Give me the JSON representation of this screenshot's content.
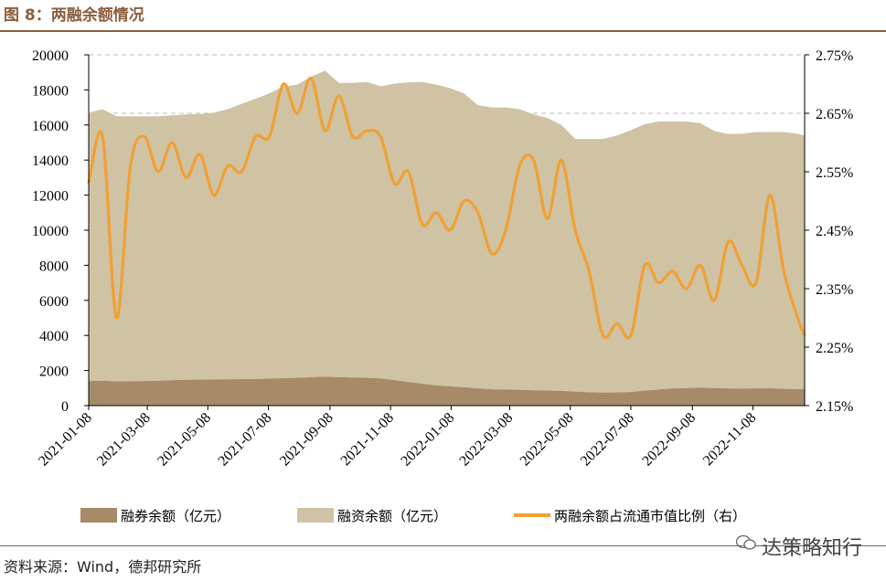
{
  "figure_title": "图 8：两融余额情况",
  "source_text": "资料来源：Wind，德邦研究所",
  "watermark_text": "达策略知行",
  "colors": {
    "margin_short": "#a78a68",
    "margin_financing": "#cfc3a4",
    "ratio_line": "#f0a035",
    "rule": "#8b5e3c",
    "grid": "#bdbdbd"
  },
  "chart_data": {
    "type": "area",
    "title": "",
    "grid": "dashed horizontal",
    "legend_position": "bottom",
    "x_tick_labels": [
      "2021-01-08",
      "2021-03-08",
      "2021-05-08",
      "2021-07-08",
      "2021-09-08",
      "2021-11-08",
      "2022-01-08",
      "2022-03-08",
      "2022-05-08",
      "2022-07-08",
      "2022-09-08",
      "2022-11-08"
    ],
    "x_range": [
      "2021-01-08",
      "2022-12-30"
    ],
    "y_left": {
      "ylim": [
        0,
        20000
      ],
      "ticks": [
        "0",
        "2000",
        "4000",
        "6000",
        "8000",
        "10000",
        "12000",
        "14000",
        "16000",
        "18000",
        "20000"
      ]
    },
    "y_right": {
      "ylim": [
        2.15,
        2.75
      ],
      "ticks": [
        "2.15%",
        "2.25%",
        "2.35%",
        "2.45%",
        "2.55%",
        "2.65%",
        "2.75%"
      ]
    },
    "x": [
      "2021-01-08",
      "2021-01-22",
      "2021-02-05",
      "2021-02-19",
      "2021-03-05",
      "2021-03-19",
      "2021-04-02",
      "2021-04-16",
      "2021-04-30",
      "2021-05-14",
      "2021-05-28",
      "2021-06-11",
      "2021-06-25",
      "2021-07-09",
      "2021-07-23",
      "2021-08-06",
      "2021-08-20",
      "2021-09-03",
      "2021-09-17",
      "2021-10-01",
      "2021-10-15",
      "2021-10-29",
      "2021-11-12",
      "2021-11-26",
      "2021-12-10",
      "2021-12-24",
      "2022-01-07",
      "2022-01-21",
      "2022-02-04",
      "2022-02-18",
      "2022-03-04",
      "2022-03-18",
      "2022-04-01",
      "2022-04-15",
      "2022-04-29",
      "2022-05-13",
      "2022-05-27",
      "2022-06-10",
      "2022-06-24",
      "2022-07-08",
      "2022-07-22",
      "2022-08-05",
      "2022-08-19",
      "2022-09-02",
      "2022-09-16",
      "2022-09-30",
      "2022-10-14",
      "2022-10-28",
      "2022-11-11",
      "2022-11-25",
      "2022-12-09",
      "2022-12-23",
      "2022-12-30"
    ],
    "series": [
      {
        "name": "融券余额（亿元）",
        "axis": "left",
        "kind": "area",
        "values": [
          1400,
          1420,
          1380,
          1390,
          1400,
          1420,
          1450,
          1470,
          1480,
          1490,
          1500,
          1510,
          1520,
          1540,
          1560,
          1580,
          1620,
          1650,
          1620,
          1600,
          1580,
          1550,
          1450,
          1350,
          1250,
          1150,
          1100,
          1050,
          980,
          930,
          920,
          900,
          880,
          860,
          840,
          800,
          760,
          740,
          750,
          780,
          850,
          920,
          980,
          1000,
          1020,
          1000,
          980,
          970,
          980,
          990,
          960,
          930,
          940
        ]
      },
      {
        "name": "融资余额（亿元）",
        "axis": "left",
        "kind": "stacked-area",
        "values": [
          15300,
          15480,
          15120,
          15110,
          15100,
          15080,
          15100,
          15130,
          15150,
          15210,
          15400,
          15690,
          15980,
          16260,
          16640,
          16720,
          17130,
          17450,
          16780,
          16800,
          16870,
          16650,
          16900,
          17080,
          17200,
          17150,
          17000,
          16750,
          16150,
          16070,
          16080,
          16000,
          15720,
          15540,
          15160,
          14400,
          14440,
          14460,
          14650,
          14920,
          15200,
          15280,
          15220,
          15200,
          15080,
          14660,
          14500,
          14530,
          14620,
          14610,
          14640,
          14570,
          14460
        ]
      },
      {
        "name": "两融余额占流通市值比例（右）",
        "axis": "right",
        "kind": "line",
        "unit": "%",
        "values": [
          2.53,
          2.61,
          2.3,
          2.56,
          2.61,
          2.55,
          2.6,
          2.54,
          2.58,
          2.51,
          2.56,
          2.55,
          2.61,
          2.61,
          2.7,
          2.65,
          2.71,
          2.62,
          2.68,
          2.61,
          2.62,
          2.61,
          2.53,
          2.55,
          2.46,
          2.48,
          2.45,
          2.5,
          2.48,
          2.41,
          2.45,
          2.56,
          2.57,
          2.47,
          2.57,
          2.45,
          2.38,
          2.27,
          2.29,
          2.27,
          2.39,
          2.36,
          2.38,
          2.35,
          2.39,
          2.33,
          2.43,
          2.39,
          2.36,
          2.51,
          2.38,
          2.3,
          2.27
        ]
      }
    ]
  }
}
